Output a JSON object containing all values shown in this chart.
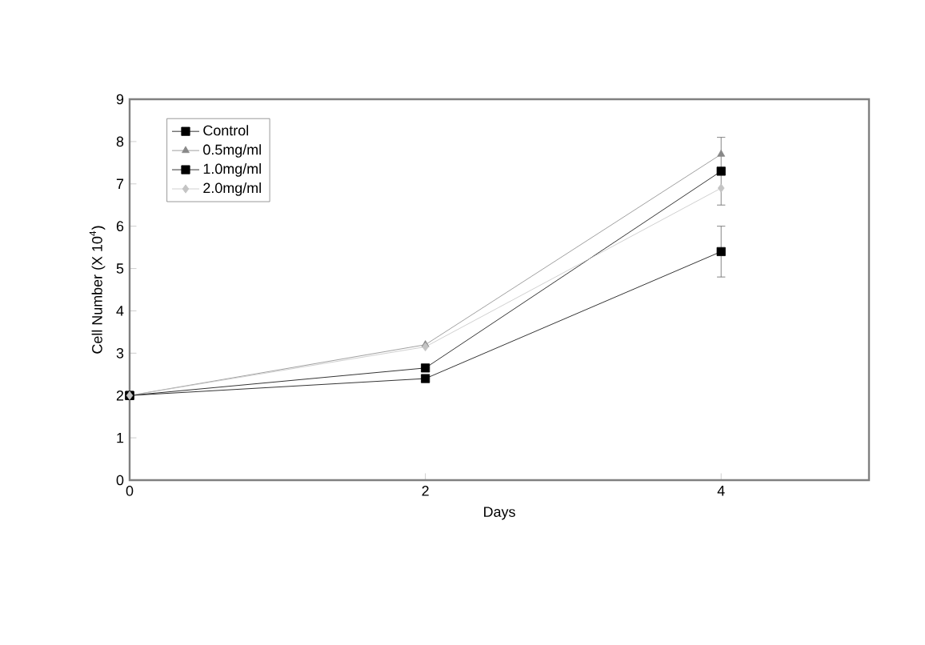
{
  "chart_data": {
    "type": "line",
    "xlabel": "Days",
    "ylabel": "Cell Number  (X 10$^{4}$)",
    "x": [
      0,
      2,
      4
    ],
    "series": [
      {
        "name": "Control",
        "color": "#000000",
        "marker": "square",
        "values": [
          2.0,
          2.4,
          5.4
        ],
        "errors": [
          null,
          null,
          0.6
        ]
      },
      {
        "name": "0.5mg/ml",
        "color": "#888888",
        "marker": "triangle",
        "values": [
          2.0,
          3.2,
          7.7
        ]
      },
      {
        "name": "1.0mg/ml",
        "color": "#000000",
        "marker": "square",
        "values": [
          2.0,
          2.65,
          7.3
        ],
        "errors": [
          null,
          null,
          0.8
        ]
      },
      {
        "name": "2.0mg/ml",
        "color": "#c4c4c4",
        "marker": "diamond",
        "values": [
          2.0,
          3.15,
          6.9
        ]
      }
    ],
    "xlim": [
      0,
      5
    ],
    "xticks": [
      0,
      2,
      4
    ],
    "ylim": [
      0,
      9
    ],
    "yticks": [
      0,
      1,
      2,
      3,
      4,
      5,
      6,
      7,
      8,
      9
    ],
    "grid": false,
    "legend": "top left",
    "line_style": "solid"
  }
}
